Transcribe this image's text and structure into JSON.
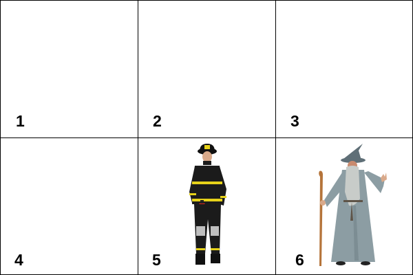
{
  "grid": {
    "cells": [
      {
        "number": "1",
        "content": "empty"
      },
      {
        "number": "2",
        "content": "empty"
      },
      {
        "number": "3",
        "content": "empty"
      },
      {
        "number": "4",
        "content": "empty"
      },
      {
        "number": "5",
        "content": "firefighter-figure"
      },
      {
        "number": "6",
        "content": "wizard-figure"
      }
    ]
  },
  "colors": {
    "border": "#000000",
    "background": "#ffffff",
    "firefighter_coat": "#1b1b1b",
    "firefighter_stripe": "#e6d21a",
    "helmet": "#111111",
    "extinguisher": "#d8261b",
    "wizard_robe": "#8c9da3",
    "wizard_beard": "#c8ccc9",
    "staff": "#b5743a"
  }
}
